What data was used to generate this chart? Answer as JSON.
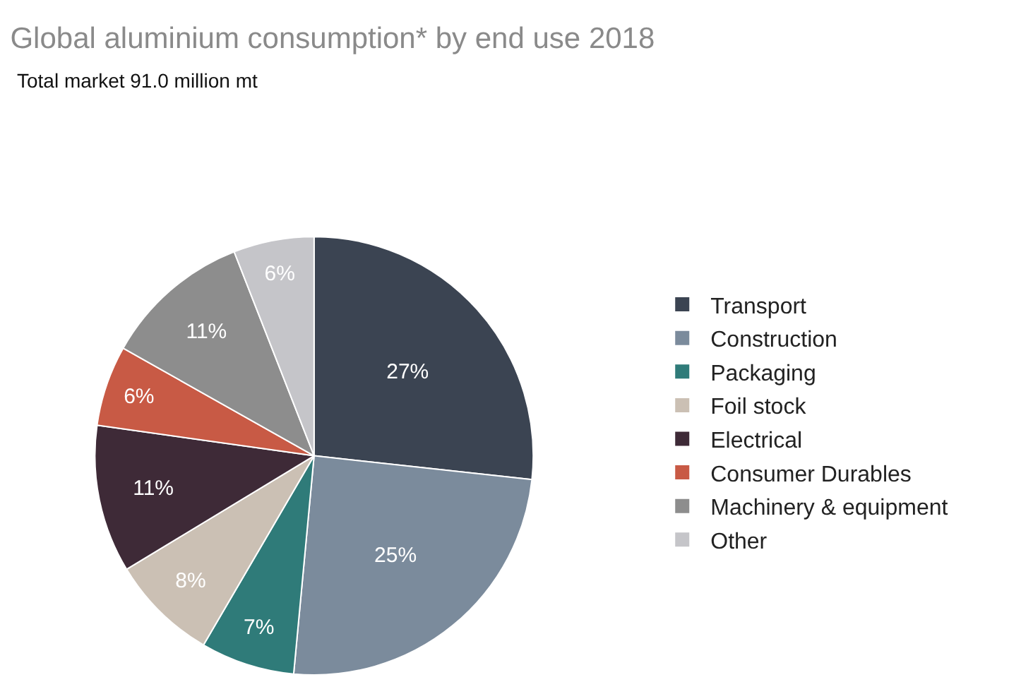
{
  "chart_data": {
    "type": "pie",
    "title": "Global aluminium consumption* by end use 2018",
    "subtitle": "Total market 91.0 million mt",
    "categories": [
      "Transport",
      "Construction",
      "Packaging",
      "Foil stock",
      "Electrical",
      "Consumer Durables",
      "Machinery & equipment",
      "Other"
    ],
    "values": [
      27,
      25,
      7,
      8,
      11,
      6,
      11,
      6
    ],
    "colors": [
      "#3b4452",
      "#7b8b9c",
      "#2f7b79",
      "#cbc0b4",
      "#3e2a37",
      "#c85a45",
      "#8d8d8d",
      "#c5c5c9"
    ],
    "value_labels": [
      "27%",
      "25%",
      "7%",
      "8%",
      "11%",
      "6%",
      "11%",
      "6%"
    ],
    "legend": "right"
  }
}
